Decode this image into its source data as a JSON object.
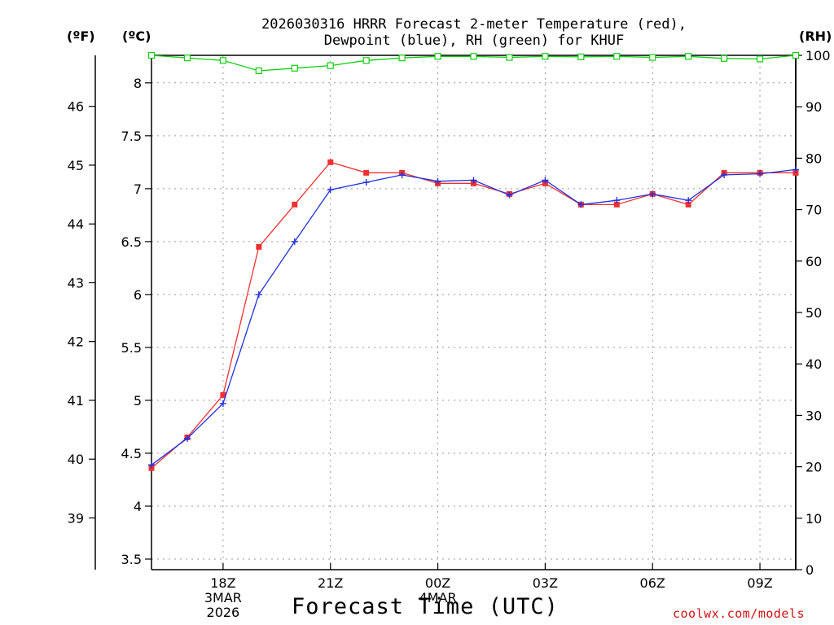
{
  "chart_data": {
    "type": "line",
    "title_line1": "2026030316 HRRR Forecast 2-meter Temperature (red),",
    "title_line2": "Dewpoint (blue), RH (green) for KHUF",
    "unit_left_f": "(ºF)",
    "unit_left_c": "(ºC)",
    "unit_right": "(RH)",
    "xlabel": "Forecast Time (UTC)",
    "credit": "coolwx.com/models",
    "x_hours": [
      16,
      17,
      18,
      19,
      20,
      21,
      22,
      23,
      24,
      25,
      26,
      27,
      28,
      29,
      30,
      31,
      32,
      33,
      34
    ],
    "x_ticks": [
      {
        "hour": 18,
        "lines": [
          "18Z",
          "3MAR",
          "2026"
        ]
      },
      {
        "hour": 21,
        "lines": [
          "21Z"
        ]
      },
      {
        "hour": 24,
        "lines": [
          "00Z",
          "4MAR"
        ]
      },
      {
        "hour": 27,
        "lines": [
          "03Z"
        ]
      },
      {
        "hour": 30,
        "lines": [
          "06Z"
        ]
      },
      {
        "hour": 33,
        "lines": [
          "09Z"
        ]
      }
    ],
    "xlim": [
      16,
      34
    ],
    "ylim_c": [
      3.4,
      8.26
    ],
    "y_ticks_c": [
      "3.5",
      "4",
      "4.5",
      "5",
      "5.5",
      "6",
      "6.5",
      "7",
      "7.5",
      "8"
    ],
    "y_ticks_f": [
      "39",
      "40",
      "41",
      "42",
      "43",
      "44",
      "45",
      "46"
    ],
    "ylim_rh": [
      0,
      100
    ],
    "y_ticks_rh": [
      "0",
      "10",
      "20",
      "30",
      "40",
      "50",
      "60",
      "70",
      "80",
      "90",
      "100"
    ],
    "series": [
      {
        "name": "Temperature",
        "color": "#f03030",
        "marker": "filled-square",
        "axis": "C",
        "values": [
          4.36,
          4.65,
          5.05,
          6.45,
          6.85,
          7.25,
          7.15,
          7.15,
          7.05,
          7.05,
          6.95,
          7.05,
          6.85,
          6.85,
          6.95,
          6.85,
          7.15,
          7.15,
          7.15
        ]
      },
      {
        "name": "Dewpoint",
        "color": "#2030e0",
        "marker": "plus",
        "axis": "C",
        "values": [
          4.39,
          4.64,
          4.97,
          6.0,
          6.5,
          6.99,
          7.06,
          7.13,
          7.07,
          7.08,
          6.94,
          7.08,
          6.85,
          6.89,
          6.95,
          6.89,
          7.13,
          7.14,
          7.18
        ]
      },
      {
        "name": "RH",
        "color": "#10d010",
        "marker": "open-square",
        "axis": "RH",
        "values": [
          100,
          99.5,
          99,
          97,
          97.5,
          98,
          99,
          99.5,
          99.8,
          99.8,
          99.6,
          99.8,
          99.7,
          99.8,
          99.6,
          99.8,
          99.4,
          99.3,
          100
        ]
      }
    ]
  }
}
